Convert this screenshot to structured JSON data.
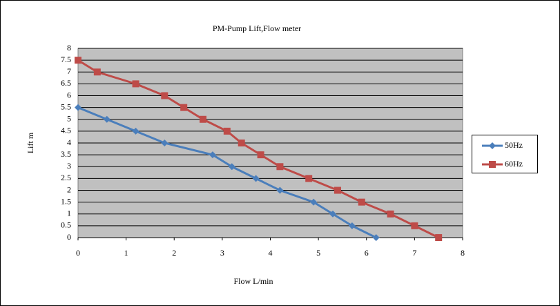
{
  "chart_data": {
    "type": "line",
    "title": "PM-Pump Lift,Flow meter",
    "x_label": "Flow L/min",
    "y_label": "Lift m",
    "xlim": [
      0,
      8
    ],
    "xticks": [
      0,
      1,
      2,
      3,
      4,
      5,
      6,
      7,
      8
    ],
    "ylim": [
      0,
      8
    ],
    "yticks": [
      0,
      0.5,
      1,
      1.5,
      2,
      2.5,
      3,
      3.5,
      4,
      4.5,
      5,
      5.5,
      6,
      6.5,
      7,
      7.5,
      8
    ],
    "grid": true,
    "legend": "right",
    "series": [
      {
        "name": "50Hz",
        "color": "#4a7ebb",
        "marker": "diamond",
        "x": [
          0,
          0.6,
          1.2,
          1.8,
          2.8,
          3.2,
          3.7,
          4.2,
          4.9,
          5.3,
          5.7,
          6.2
        ],
        "values": [
          5.5,
          5,
          4.5,
          4,
          3.5,
          3,
          2.5,
          2,
          1.5,
          1,
          0.5,
          0
        ]
      },
      {
        "name": "60Hz",
        "color": "#be4b48",
        "marker": "square",
        "x": [
          0,
          0.4,
          1.2,
          1.8,
          2.2,
          2.6,
          3.1,
          3.4,
          3.8,
          4.2,
          4.8,
          5.4,
          5.9,
          6.5,
          7.0,
          7.5
        ],
        "values": [
          7.5,
          7,
          6.5,
          6,
          5.5,
          5,
          4.5,
          4,
          3.5,
          3,
          2.5,
          2,
          1.5,
          1,
          0.5,
          0
        ]
      }
    ]
  }
}
